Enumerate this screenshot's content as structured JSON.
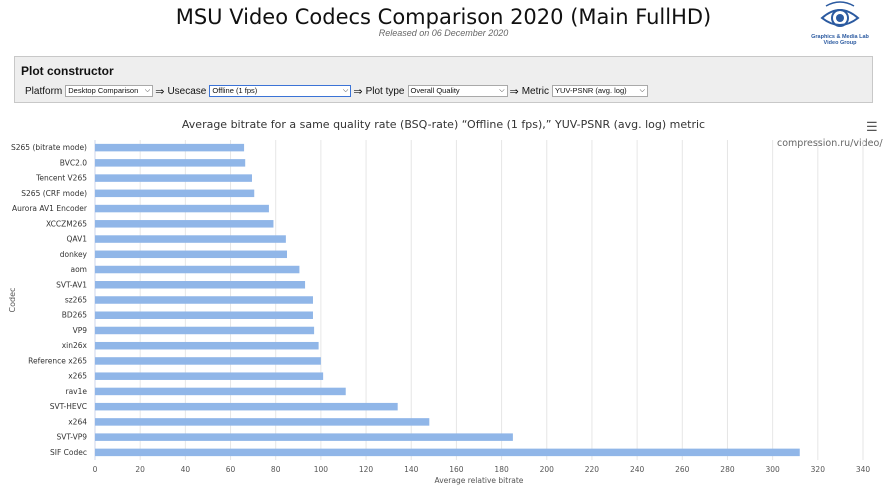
{
  "header": {
    "title": "MSU Video Codecs Comparison 2020 (Main FullHD)",
    "subtitle": "Released on 06 December 2020",
    "logo_line1": "Graphics & Media Lab",
    "logo_line2": "Video Group"
  },
  "constructor": {
    "title": "Plot constructor",
    "platform_label": "Platform",
    "platform_value": "Desktop Comparison",
    "usecase_label": "Usecase",
    "usecase_value": "Offline (1 fps)",
    "plot_type_label": "Plot type",
    "plot_type_value": "Overall Quality",
    "metric_label": "Metric",
    "metric_value": "YUV-PSNR (avg. log)",
    "arrow": "⇒"
  },
  "menu_icon": "☰",
  "credits": "compression.ru/video/",
  "colors": {
    "bar": "#90b6e8",
    "grid": "#e6e6e6",
    "accent": "#3b73d6"
  },
  "chart_data": {
    "type": "bar",
    "orientation": "horizontal",
    "title": "Average bitrate for a same quality rate (BSQ-rate) “Offline (1 fps),” YUV-PSNR (avg. log) metric",
    "xlabel": "Average relative bitrate",
    "ylabel": "Codec",
    "xlim": [
      0,
      340
    ],
    "xticks": [
      0,
      20,
      40,
      60,
      80,
      100,
      120,
      140,
      160,
      180,
      200,
      220,
      240,
      260,
      280,
      300,
      320,
      340
    ],
    "grid": true,
    "categories": [
      "S265 (bitrate mode)",
      "BVC2.0",
      "Tencent V265",
      "S265 (CRF mode)",
      "Aurora AV1 Encoder",
      "XCCZM265",
      "QAV1",
      "donkey",
      "aom",
      "SVT-AV1",
      "sz265",
      "BD265",
      "VP9",
      "xin26x",
      "Reference x265",
      "x265",
      "rav1e",
      "SVT-HEVC",
      "x264",
      "SVT-VP9",
      "SIF Codec"
    ],
    "values": [
      66,
      66.5,
      69.5,
      70.5,
      77,
      79,
      84.5,
      85,
      90.5,
      93,
      96.5,
      96.5,
      97,
      99,
      100,
      101,
      111,
      134,
      148,
      185,
      312
    ]
  }
}
